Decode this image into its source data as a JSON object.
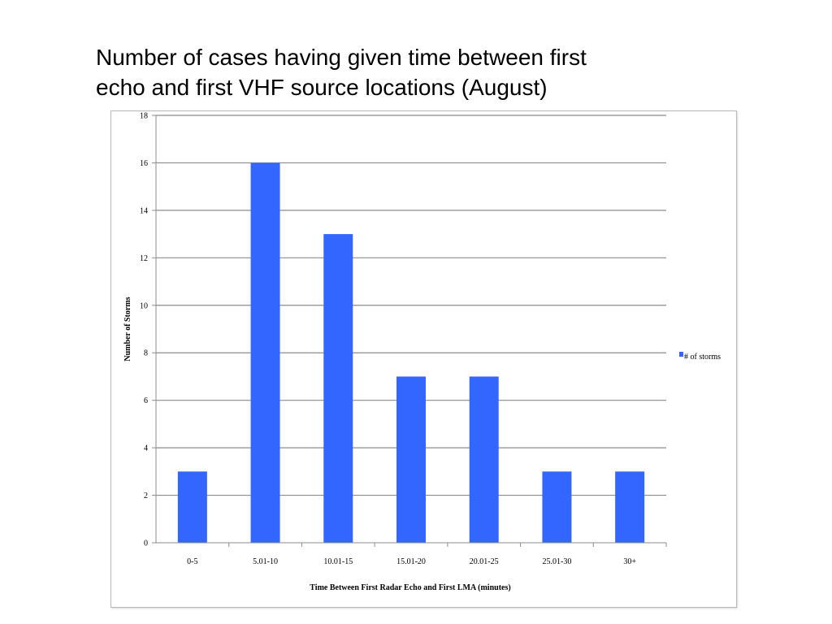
{
  "slide": {
    "title_line1": "Number of cases having given time between first",
    "title_line2": "echo and first VHF source locations  (August)"
  },
  "chart_data": {
    "type": "bar",
    "categories": [
      "0-5",
      "5.01-10",
      "10.01-15",
      "15.01-20",
      "20.01-25",
      "25.01-30",
      "30+"
    ],
    "series": [
      {
        "name": "# of storms",
        "values": [
          3,
          16,
          13,
          7,
          7,
          3,
          3
        ],
        "color": "#3366ff"
      }
    ],
    "xlabel": "Time Between First Radar Echo and First LMA (minutes)",
    "ylabel": "Number of Storms",
    "ylim": [
      0,
      18
    ],
    "yticks": [
      0,
      2,
      4,
      6,
      8,
      10,
      12,
      14,
      16,
      18
    ],
    "grid": true,
    "legend_position": "right",
    "gridline_color": "#8c8c8c"
  }
}
